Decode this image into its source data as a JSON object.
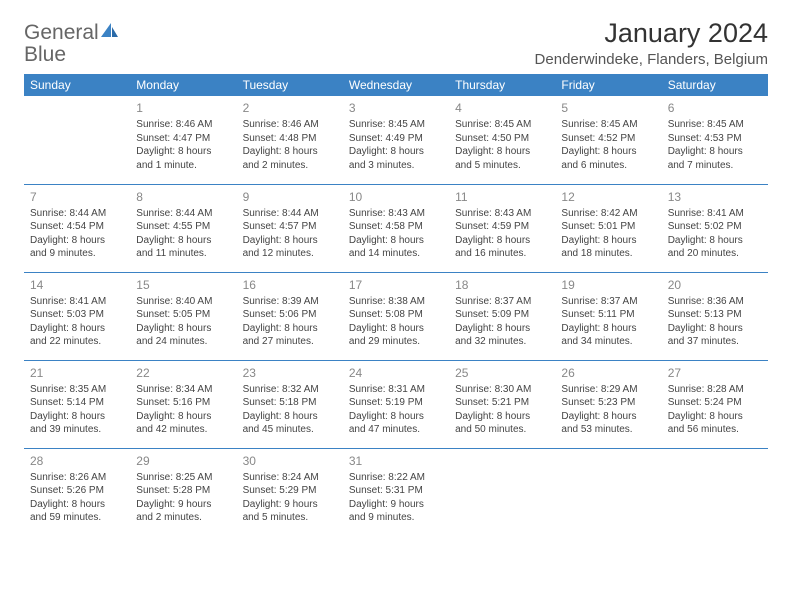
{
  "logo": {
    "general": "General",
    "blue": "Blue"
  },
  "title": "January 2024",
  "location": "Denderwindeke, Flanders, Belgium",
  "colors": {
    "header_bg": "#3b82c4",
    "header_text": "#ffffff",
    "border": "#3b82c4",
    "daynum": "#888888",
    "body_text": "#444444"
  },
  "day_headers": [
    "Sunday",
    "Monday",
    "Tuesday",
    "Wednesday",
    "Thursday",
    "Friday",
    "Saturday"
  ],
  "weeks": [
    [
      null,
      {
        "n": "1",
        "sr": "Sunrise: 8:46 AM",
        "ss": "Sunset: 4:47 PM",
        "d1": "Daylight: 8 hours",
        "d2": "and 1 minute."
      },
      {
        "n": "2",
        "sr": "Sunrise: 8:46 AM",
        "ss": "Sunset: 4:48 PM",
        "d1": "Daylight: 8 hours",
        "d2": "and 2 minutes."
      },
      {
        "n": "3",
        "sr": "Sunrise: 8:45 AM",
        "ss": "Sunset: 4:49 PM",
        "d1": "Daylight: 8 hours",
        "d2": "and 3 minutes."
      },
      {
        "n": "4",
        "sr": "Sunrise: 8:45 AM",
        "ss": "Sunset: 4:50 PM",
        "d1": "Daylight: 8 hours",
        "d2": "and 5 minutes."
      },
      {
        "n": "5",
        "sr": "Sunrise: 8:45 AM",
        "ss": "Sunset: 4:52 PM",
        "d1": "Daylight: 8 hours",
        "d2": "and 6 minutes."
      },
      {
        "n": "6",
        "sr": "Sunrise: 8:45 AM",
        "ss": "Sunset: 4:53 PM",
        "d1": "Daylight: 8 hours",
        "d2": "and 7 minutes."
      }
    ],
    [
      {
        "n": "7",
        "sr": "Sunrise: 8:44 AM",
        "ss": "Sunset: 4:54 PM",
        "d1": "Daylight: 8 hours",
        "d2": "and 9 minutes."
      },
      {
        "n": "8",
        "sr": "Sunrise: 8:44 AM",
        "ss": "Sunset: 4:55 PM",
        "d1": "Daylight: 8 hours",
        "d2": "and 11 minutes."
      },
      {
        "n": "9",
        "sr": "Sunrise: 8:44 AM",
        "ss": "Sunset: 4:57 PM",
        "d1": "Daylight: 8 hours",
        "d2": "and 12 minutes."
      },
      {
        "n": "10",
        "sr": "Sunrise: 8:43 AM",
        "ss": "Sunset: 4:58 PM",
        "d1": "Daylight: 8 hours",
        "d2": "and 14 minutes."
      },
      {
        "n": "11",
        "sr": "Sunrise: 8:43 AM",
        "ss": "Sunset: 4:59 PM",
        "d1": "Daylight: 8 hours",
        "d2": "and 16 minutes."
      },
      {
        "n": "12",
        "sr": "Sunrise: 8:42 AM",
        "ss": "Sunset: 5:01 PM",
        "d1": "Daylight: 8 hours",
        "d2": "and 18 minutes."
      },
      {
        "n": "13",
        "sr": "Sunrise: 8:41 AM",
        "ss": "Sunset: 5:02 PM",
        "d1": "Daylight: 8 hours",
        "d2": "and 20 minutes."
      }
    ],
    [
      {
        "n": "14",
        "sr": "Sunrise: 8:41 AM",
        "ss": "Sunset: 5:03 PM",
        "d1": "Daylight: 8 hours",
        "d2": "and 22 minutes."
      },
      {
        "n": "15",
        "sr": "Sunrise: 8:40 AM",
        "ss": "Sunset: 5:05 PM",
        "d1": "Daylight: 8 hours",
        "d2": "and 24 minutes."
      },
      {
        "n": "16",
        "sr": "Sunrise: 8:39 AM",
        "ss": "Sunset: 5:06 PM",
        "d1": "Daylight: 8 hours",
        "d2": "and 27 minutes."
      },
      {
        "n": "17",
        "sr": "Sunrise: 8:38 AM",
        "ss": "Sunset: 5:08 PM",
        "d1": "Daylight: 8 hours",
        "d2": "and 29 minutes."
      },
      {
        "n": "18",
        "sr": "Sunrise: 8:37 AM",
        "ss": "Sunset: 5:09 PM",
        "d1": "Daylight: 8 hours",
        "d2": "and 32 minutes."
      },
      {
        "n": "19",
        "sr": "Sunrise: 8:37 AM",
        "ss": "Sunset: 5:11 PM",
        "d1": "Daylight: 8 hours",
        "d2": "and 34 minutes."
      },
      {
        "n": "20",
        "sr": "Sunrise: 8:36 AM",
        "ss": "Sunset: 5:13 PM",
        "d1": "Daylight: 8 hours",
        "d2": "and 37 minutes."
      }
    ],
    [
      {
        "n": "21",
        "sr": "Sunrise: 8:35 AM",
        "ss": "Sunset: 5:14 PM",
        "d1": "Daylight: 8 hours",
        "d2": "and 39 minutes."
      },
      {
        "n": "22",
        "sr": "Sunrise: 8:34 AM",
        "ss": "Sunset: 5:16 PM",
        "d1": "Daylight: 8 hours",
        "d2": "and 42 minutes."
      },
      {
        "n": "23",
        "sr": "Sunrise: 8:32 AM",
        "ss": "Sunset: 5:18 PM",
        "d1": "Daylight: 8 hours",
        "d2": "and 45 minutes."
      },
      {
        "n": "24",
        "sr": "Sunrise: 8:31 AM",
        "ss": "Sunset: 5:19 PM",
        "d1": "Daylight: 8 hours",
        "d2": "and 47 minutes."
      },
      {
        "n": "25",
        "sr": "Sunrise: 8:30 AM",
        "ss": "Sunset: 5:21 PM",
        "d1": "Daylight: 8 hours",
        "d2": "and 50 minutes."
      },
      {
        "n": "26",
        "sr": "Sunrise: 8:29 AM",
        "ss": "Sunset: 5:23 PM",
        "d1": "Daylight: 8 hours",
        "d2": "and 53 minutes."
      },
      {
        "n": "27",
        "sr": "Sunrise: 8:28 AM",
        "ss": "Sunset: 5:24 PM",
        "d1": "Daylight: 8 hours",
        "d2": "and 56 minutes."
      }
    ],
    [
      {
        "n": "28",
        "sr": "Sunrise: 8:26 AM",
        "ss": "Sunset: 5:26 PM",
        "d1": "Daylight: 8 hours",
        "d2": "and 59 minutes."
      },
      {
        "n": "29",
        "sr": "Sunrise: 8:25 AM",
        "ss": "Sunset: 5:28 PM",
        "d1": "Daylight: 9 hours",
        "d2": "and 2 minutes."
      },
      {
        "n": "30",
        "sr": "Sunrise: 8:24 AM",
        "ss": "Sunset: 5:29 PM",
        "d1": "Daylight: 9 hours",
        "d2": "and 5 minutes."
      },
      {
        "n": "31",
        "sr": "Sunrise: 8:22 AM",
        "ss": "Sunset: 5:31 PM",
        "d1": "Daylight: 9 hours",
        "d2": "and 9 minutes."
      },
      null,
      null,
      null
    ]
  ]
}
